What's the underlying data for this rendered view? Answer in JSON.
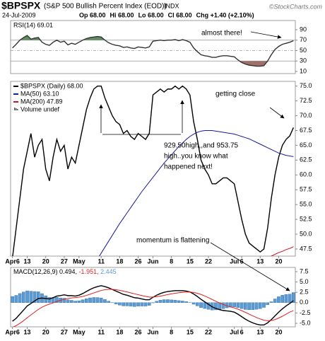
{
  "header": {
    "symbol": "$BPSPX",
    "name": "(S&P 500 Bullish Percent Index (EOD))",
    "exchange": "INDX",
    "credit": "©StockCharts.com",
    "date": "24-Jul-2009",
    "quote": [
      "Op 68.00",
      "Hi 68.00",
      "Lo 68.00",
      "Cl 68.00",
      "Chg +1.40 (+2.10%)"
    ]
  },
  "chart_data": [
    {
      "type": "line",
      "series": [
        {
          "name": "RSI(14) 69.01",
          "color": "#333333",
          "values": [
            55,
            62,
            70,
            75,
            79,
            72,
            74,
            75,
            66,
            62,
            60,
            66,
            70,
            66,
            68,
            61,
            64,
            62,
            66,
            70,
            73,
            75,
            76,
            77,
            76,
            70,
            65,
            62,
            60,
            59,
            56,
            57,
            55,
            54,
            57,
            56,
            55,
            57,
            68,
            69,
            70,
            69,
            70,
            70,
            71,
            69,
            71,
            69,
            66,
            55,
            48,
            42,
            40,
            39,
            37,
            37,
            39,
            40,
            40,
            39,
            38,
            32,
            27,
            24,
            22,
            21,
            20,
            20,
            21,
            30,
            42,
            52,
            58,
            62,
            64,
            66,
            69.01
          ]
        }
      ],
      "ylim": [
        5.9,
        107.6
      ],
      "yticks": [
        90,
        70,
        50,
        30,
        10
      ],
      "overbought": 70,
      "midline": 50,
      "oversold": 30,
      "overbought_color": "#5f8f5f",
      "oversold_color": "#a0706a",
      "annotations": [
        "almost there!"
      ]
    },
    {
      "type": "line",
      "categories": [
        "Apr6",
        null,
        null,
        null,
        "13",
        null,
        null,
        null,
        null,
        "20",
        null,
        null,
        null,
        null,
        "27",
        null,
        null,
        null,
        "May",
        null,
        null,
        null,
        null,
        null,
        "11",
        null,
        null,
        null,
        null,
        "18",
        null,
        null,
        null,
        null,
        "26",
        null,
        null,
        null,
        "Jun",
        null,
        null,
        null,
        null,
        "8",
        null,
        null,
        null,
        null,
        "15",
        null,
        null,
        null,
        null,
        "22",
        null,
        null,
        null,
        null,
        null,
        null,
        "Jul",
        null,
        "6",
        null,
        null,
        null,
        null,
        "13",
        null,
        null,
        null,
        null,
        "20",
        null,
        null,
        null,
        null
      ],
      "x_axis_labels": true,
      "series": [
        {
          "name": "$BPSPX (Daily) 68.00",
          "color": "#000000",
          "values": [
            46,
            51,
            56,
            61,
            64,
            67,
            63,
            65,
            66,
            61,
            59,
            63,
            66,
            64,
            65,
            61,
            63,
            62,
            65,
            68,
            71,
            73,
            74.5,
            75,
            75,
            73,
            71.5,
            70,
            69,
            68.5,
            67,
            67.5,
            66.5,
            66,
            67,
            66.5,
            66,
            67,
            73.5,
            74,
            74.5,
            74,
            74.5,
            74.5,
            75,
            74.5,
            75,
            74.5,
            73.5,
            69,
            66,
            62.5,
            61,
            60,
            58.5,
            58.5,
            59,
            59.5,
            59.5,
            59,
            58.5,
            55.5,
            52.5,
            50,
            48.5,
            48,
            47.5,
            47,
            47.5,
            51,
            56,
            60,
            63,
            65,
            66,
            66.6,
            68
          ]
        },
        {
          "name": "MA(50) 63.10",
          "color": "#1a1a9a",
          "values": [
            null,
            null,
            null,
            null,
            null,
            null,
            null,
            null,
            null,
            null,
            null,
            null,
            null,
            null,
            null,
            null,
            null,
            null,
            null,
            null,
            null,
            null,
            null,
            45.8,
            46.8,
            47.8,
            48.8,
            49.8,
            50.8,
            51.8,
            52.7,
            53.6,
            54.5,
            55.4,
            56.3,
            57.2,
            58.0,
            58.8,
            59.6,
            60.4,
            61.2,
            62.0,
            62.7,
            63.4,
            64.1,
            64.8,
            65.4,
            66.0,
            66.5,
            66.9,
            67.2,
            67.4,
            67.5,
            67.5,
            67.5,
            67.4,
            67.3,
            67.2,
            67.1,
            67.0,
            66.9,
            66.7,
            66.5,
            66.3,
            66.1,
            65.8,
            65.5,
            65.2,
            64.9,
            64.6,
            64.3,
            64.0,
            63.7,
            63.5,
            63.3,
            63.2,
            63.1
          ]
        },
        {
          "name": "MA(200) 47.89",
          "color": "#d0102c",
          "values": [
            null,
            null,
            null,
            null,
            null,
            null,
            null,
            null,
            null,
            null,
            null,
            null,
            null,
            null,
            null,
            null,
            null,
            null,
            null,
            null,
            null,
            null,
            null,
            null,
            null,
            null,
            null,
            null,
            null,
            null,
            null,
            null,
            null,
            null,
            null,
            null,
            null,
            null,
            null,
            null,
            null,
            null,
            null,
            null,
            null,
            null,
            null,
            null,
            null,
            null,
            null,
            null,
            null,
            null,
            null,
            null,
            null,
            null,
            null,
            null,
            null,
            null,
            null,
            null,
            null,
            null,
            null,
            null,
            null,
            46.0,
            46.3,
            46.6,
            46.9,
            47.1,
            47.4,
            47.6,
            47.89
          ]
        }
      ],
      "extra_legend": "Volume undef",
      "ylim": [
        46.3,
        75.8
      ],
      "yticks": [
        47.5,
        {
          "value": 50,
          "label": "50.0"
        },
        52.5,
        {
          "value": 55,
          "label": "55.0"
        },
        57.5,
        {
          "value": 60,
          "label": "60.0"
        },
        62.5,
        {
          "value": 65,
          "label": "65.0"
        },
        67.5,
        {
          "value": 70,
          "label": "70.0"
        },
        72.5,
        {
          "value": 75,
          "label": "75.0"
        }
      ],
      "annotations": [
        "getting close",
        "929.50high,,and 953.75",
        "high..you know what",
        "happened next!",
        "momentum is flattening"
      ]
    },
    {
      "type": "line",
      "x_axis_labels": true,
      "series": [
        {
          "name": "MACD(12,26,9) 0.494,",
          "color": "#000000",
          "values": [
            -4.5,
            -3.8,
            -2.8,
            -1.8,
            -0.8,
            -0.2,
            0.4,
            1.0,
            1.1,
            1.0,
            0.9,
            1.2,
            1.6,
            1.7,
            1.9,
            1.7,
            1.7,
            1.6,
            1.8,
            2.2,
            2.7,
            3.2,
            3.6,
            3.9,
            4.1,
            3.9,
            3.6,
            3.2,
            2.8,
            2.4,
            2.0,
            1.8,
            1.5,
            1.2,
            1.1,
            0.9,
            0.7,
            0.7,
            1.3,
            1.8,
            2.2,
            2.5,
            2.7,
            2.8,
            2.9,
            2.9,
            2.9,
            2.8,
            2.6,
            2.1,
            1.5,
            0.8,
            0.2,
            -0.4,
            -1.0,
            -1.4,
            -1.7,
            -1.9,
            -2.0,
            -2.1,
            -2.3,
            -2.8,
            -3.4,
            -4.0,
            -4.5,
            -4.9,
            -5.2,
            -5.4,
            -5.4,
            -4.9,
            -4.1,
            -3.2,
            -2.3,
            -1.5,
            -0.8,
            -0.2,
            0.494
          ]
        },
        {
          "name": "-1.951,",
          "color": "#e02020",
          "values": [
            -6.0,
            -5.56,
            -5.01,
            -4.37,
            -3.66,
            -2.97,
            -2.3,
            -1.64,
            -1.09,
            -0.67,
            -0.36,
            -0.05,
            0.28,
            0.56,
            0.83,
            1.0,
            1.14,
            1.23,
            1.34,
            1.51,
            1.75,
            2.04,
            2.35,
            2.66,
            2.95,
            3.14,
            3.23,
            3.22,
            3.14,
            2.99,
            2.79,
            2.59,
            2.37,
            2.14,
            1.93,
            1.72,
            1.52,
            1.36,
            1.35,
            1.44,
            1.59,
            1.77,
            1.96,
            2.13,
            2.28,
            2.4,
            2.5,
            2.56,
            2.57,
            2.48,
            2.28,
            1.98,
            1.62,
            1.22,
            0.78,
            0.34,
            -0.07,
            -0.44,
            -0.75,
            -1.02,
            -1.28,
            -1.58,
            -1.94,
            -2.35,
            -2.78,
            -3.2,
            -3.6,
            -3.96,
            -4.25,
            -4.38,
            -4.32,
            -4.1,
            -3.74,
            -3.29,
            -2.79,
            -2.27,
            -1.951
          ]
        },
        {
          "name": "2.445",
          "color": "#5b9bd5",
          "type": "bar",
          "values": [
            1.5,
            1.76,
            2.21,
            2.57,
            2.86,
            2.77,
            2.7,
            2.64,
            2.19,
            1.67,
            1.26,
            1.25,
            1.32,
            1.14,
            1.07,
            0.7,
            0.56,
            0.37,
            0.46,
            0.69,
            0.95,
            1.16,
            1.25,
            1.24,
            1.15,
            0.76,
            0.37,
            -0.02,
            -0.34,
            -0.59,
            -0.79,
            -0.79,
            -0.87,
            -0.94,
            -0.83,
            -0.82,
            -0.82,
            -0.66,
            -0.05,
            0.36,
            0.61,
            0.73,
            0.74,
            0.67,
            0.62,
            0.5,
            0.4,
            0.24,
            0.03,
            -0.38,
            -0.78,
            -1.18,
            -1.42,
            -1.62,
            -1.78,
            -1.74,
            -1.63,
            -1.46,
            -1.25,
            -1.08,
            -1.02,
            -1.22,
            -1.46,
            -1.65,
            -1.72,
            -1.7,
            -1.6,
            -1.44,
            -1.15,
            -0.52,
            0.22,
            0.9,
            1.44,
            1.79,
            1.99,
            2.07,
            2.445
          ]
        }
      ],
      "ylim": [
        -5.86,
        8.53
      ],
      "yticks": [
        7.5,
        {
          "value": 5,
          "label": "5.0"
        },
        2.5,
        {
          "value": 0,
          "label": "0.0"
        },
        -2.5,
        {
          "value": -5,
          "label": "-5.0"
        }
      ]
    }
  ]
}
